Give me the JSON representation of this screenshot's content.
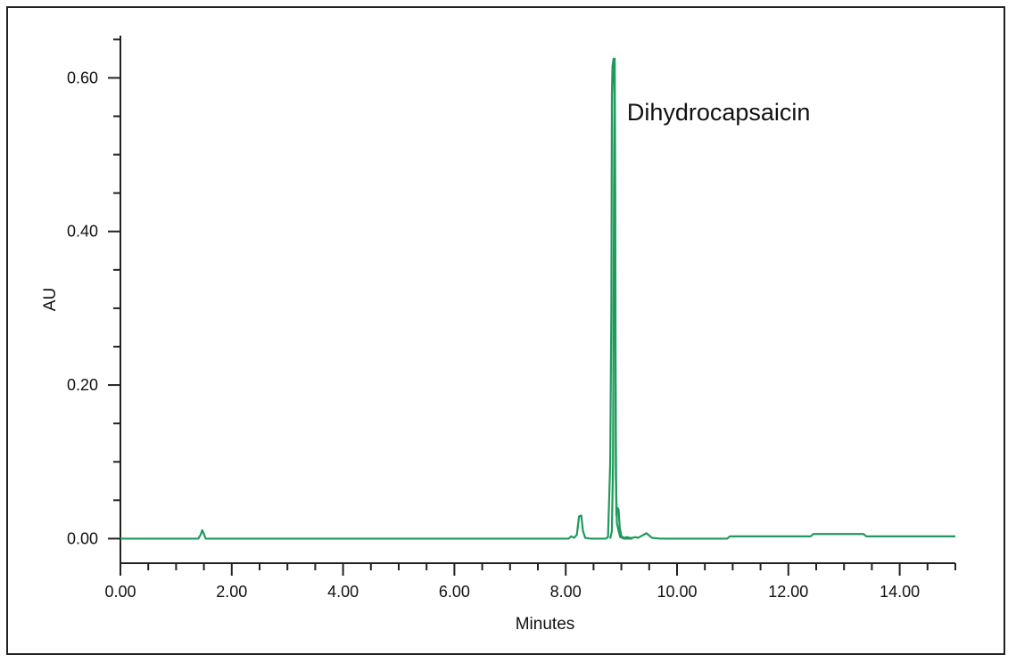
{
  "chart_data": {
    "type": "line",
    "xlabel": "Minutes",
    "ylabel": "AU",
    "xlim": [
      0,
      15
    ],
    "ylim": [
      -0.032,
      0.655
    ],
    "x_ticks": [
      0,
      2,
      4,
      6,
      8,
      10,
      12,
      14
    ],
    "x_tick_labels": [
      "0.00",
      "2.00",
      "4.00",
      "6.00",
      "8.00",
      "10.00",
      "12.00",
      "14.00"
    ],
    "x_minor_step": 0.5,
    "y_ticks": [
      0,
      0.2,
      0.4,
      0.6
    ],
    "y_tick_labels": [
      "0.00",
      "0.20",
      "0.40",
      "0.60"
    ],
    "y_minor_step": 0.05,
    "grid": false,
    "line_color": "#1f9a5c",
    "annotations": [
      {
        "text": "Dihydrocapsaicin",
        "x": 9.1,
        "y": 0.545
      }
    ],
    "series": [
      {
        "points": [
          [
            0.0,
            0.0
          ],
          [
            1.4,
            0.0
          ],
          [
            1.44,
            0.005
          ],
          [
            1.47,
            0.011
          ],
          [
            1.5,
            0.006
          ],
          [
            1.53,
            0.0
          ],
          [
            8.05,
            0.0
          ],
          [
            8.1,
            0.003
          ],
          [
            8.15,
            0.001
          ],
          [
            8.2,
            0.005
          ],
          [
            8.24,
            0.029
          ],
          [
            8.28,
            0.03
          ],
          [
            8.31,
            0.01
          ],
          [
            8.35,
            0.001
          ],
          [
            8.45,
            0.0
          ],
          [
            8.72,
            0.0
          ],
          [
            8.76,
            0.002
          ],
          [
            8.78,
            0.05
          ],
          [
            8.8,
            0.1
          ],
          [
            8.82,
            0.3
          ],
          [
            8.83,
            0.58
          ],
          [
            8.84,
            0.615
          ],
          [
            8.86,
            0.625
          ],
          [
            8.88,
            0.56
          ],
          [
            8.89,
            0.26
          ],
          [
            8.9,
            0.15
          ],
          [
            8.91,
            0.03
          ],
          [
            8.93,
            0.04
          ],
          [
            8.95,
            0.038
          ],
          [
            8.97,
            0.015
          ],
          [
            9.0,
            0.003
          ],
          [
            9.05,
            0.001
          ],
          [
            9.1,
            0.002
          ],
          [
            9.15,
            0.001
          ],
          [
            9.2,
            0.001
          ],
          [
            9.25,
            0.002
          ],
          [
            9.3,
            0.001
          ],
          [
            9.35,
            0.003
          ],
          [
            9.4,
            0.005
          ],
          [
            9.45,
            0.007
          ],
          [
            9.5,
            0.004
          ],
          [
            9.55,
            0.001
          ],
          [
            9.7,
            0.0
          ],
          [
            10.9,
            0.0
          ],
          [
            10.95,
            0.003
          ],
          [
            12.4,
            0.003
          ],
          [
            12.45,
            0.006
          ],
          [
            13.35,
            0.006
          ],
          [
            13.4,
            0.003
          ],
          [
            15.0,
            0.003
          ]
        ]
      },
      {
        "points": [
          [
            8.8,
            0.0
          ],
          [
            8.83,
            0.01
          ],
          [
            8.85,
            0.1
          ],
          [
            8.86,
            0.3
          ],
          [
            8.87,
            0.5
          ],
          [
            8.88,
            0.625
          ],
          [
            8.89,
            0.45
          ],
          [
            8.9,
            0.08
          ],
          [
            8.92,
            0.02
          ],
          [
            8.95,
            0.01
          ],
          [
            8.98,
            0.002
          ],
          [
            9.05,
            0.0
          ],
          [
            9.2,
            0.0
          ]
        ]
      }
    ]
  }
}
